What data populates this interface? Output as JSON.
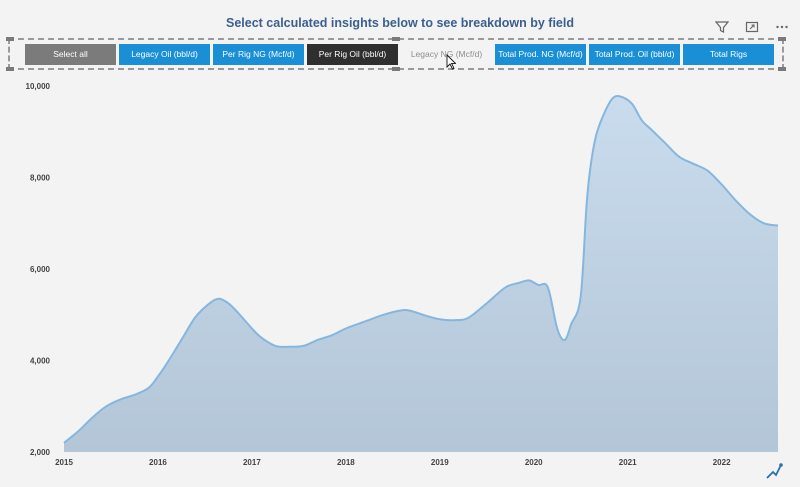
{
  "header": {
    "title": "Select calculated insights below to see breakdown by field"
  },
  "toolbar": {
    "icons": [
      "filter-icon",
      "focus-mode-icon",
      "more-options-icon"
    ]
  },
  "slicer": {
    "buttons": [
      {
        "label": "Select all",
        "state": "gray"
      },
      {
        "label": "Legacy Oil (bbl/d)",
        "state": "blue"
      },
      {
        "label": "Per Rig NG (Mcf/d)",
        "state": "blue"
      },
      {
        "label": "Per Rig Oil (bbl/d)",
        "state": "dark"
      },
      {
        "label": "Legacy NG (Mcf/d)",
        "state": "light"
      },
      {
        "label": "Total Prod. NG (Mcf/d)",
        "state": "blue"
      },
      {
        "label": "Total Prod. Oil (bbl/d)",
        "state": "blue"
      },
      {
        "label": "Total Rigs",
        "state": "blue"
      }
    ]
  },
  "chart_data": {
    "type": "area",
    "title": "",
    "xlabel": "",
    "ylabel": "",
    "x_ticks": [
      "2015",
      "2016",
      "2017",
      "2018",
      "2019",
      "2020",
      "2021",
      "2022"
    ],
    "y_ticks": [
      "2,000",
      "4,000",
      "6,000",
      "8,000",
      "10,000"
    ],
    "xlim": [
      2015.0,
      2022.6
    ],
    "ylim": [
      2000,
      10000
    ],
    "grid": false,
    "colors": {
      "fill": "#c9dcee",
      "line": "#86b6de"
    },
    "series": [
      {
        "x": [
          2015.0,
          2015.15,
          2015.3,
          2015.45,
          2015.6,
          2015.75,
          2015.9,
          2016.0,
          2016.1,
          2016.25,
          2016.4,
          2016.55,
          2016.65,
          2016.75,
          2016.85,
          2017.0,
          2017.1,
          2017.25,
          2017.4,
          2017.55,
          2017.7,
          2017.85,
          2018.0,
          2018.2,
          2018.4,
          2018.6,
          2018.7,
          2018.85,
          2019.0,
          2019.15,
          2019.3,
          2019.5,
          2019.7,
          2019.85,
          2019.95,
          2020.05,
          2020.15,
          2020.25,
          2020.33,
          2020.4,
          2020.5,
          2020.57,
          2020.65,
          2020.75,
          2020.85,
          2020.95,
          2021.05,
          2021.15,
          2021.25,
          2021.4,
          2021.55,
          2021.7,
          2021.85,
          2022.0,
          2022.15,
          2022.3,
          2022.45,
          2022.6
        ],
        "y": [
          2200,
          2450,
          2750,
          3000,
          3150,
          3250,
          3400,
          3650,
          3950,
          4450,
          4950,
          5250,
          5350,
          5250,
          5050,
          4700,
          4500,
          4320,
          4300,
          4320,
          4450,
          4550,
          4700,
          4850,
          5000,
          5100,
          5080,
          4980,
          4900,
          4880,
          4930,
          5250,
          5600,
          5700,
          5750,
          5650,
          5600,
          4700,
          4450,
          4800,
          5400,
          7600,
          8800,
          9400,
          9750,
          9750,
          9600,
          9250,
          9050,
          8750,
          8450,
          8300,
          8150,
          7850,
          7500,
          7200,
          7000,
          6950
        ]
      }
    ]
  }
}
